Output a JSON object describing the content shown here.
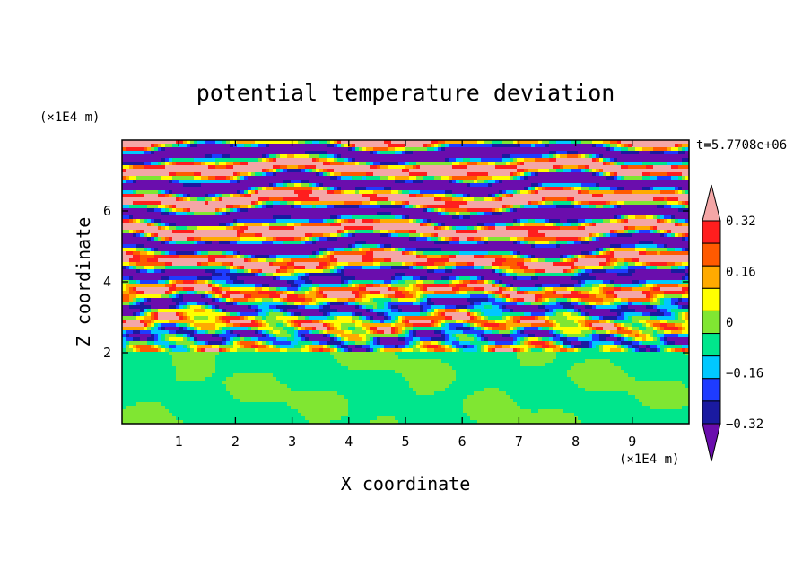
{
  "chart_data": {
    "type": "heatmap",
    "title": "potential temperature deviation",
    "xlabel": "X coordinate",
    "ylabel": "Z coordinate",
    "x_unit": "(×1E4 m)",
    "y_unit": "(×1E4 m)",
    "time_label": "t=5.7708e+06",
    "xlim": [
      0,
      10
    ],
    "ylim": [
      0,
      8
    ],
    "x_ticks": [
      "1",
      "2",
      "3",
      "4",
      "5",
      "6",
      "7",
      "8",
      "9"
    ],
    "y_ticks": [
      "2",
      "4",
      "6"
    ],
    "colorbar": {
      "tick_labels": [
        "0.32",
        "0.16",
        "0",
        "−0.16",
        "−0.32"
      ],
      "tick_values": [
        0.32,
        0.16,
        0,
        -0.16,
        -0.32
      ],
      "levels": [
        -0.4,
        -0.32,
        -0.24,
        -0.16,
        -0.08,
        0,
        0.08,
        0.16,
        0.24,
        0.32,
        0.4
      ],
      "colors": [
        "#6a0dad",
        "#1a1aa0",
        "#1e3cff",
        "#00c8ff",
        "#00e68c",
        "#80e632",
        "#ffff00",
        "#ffaa00",
        "#ff5a00",
        "#ff1e1e",
        "#f4a6a6"
      ],
      "extend": "both"
    },
    "field_description": {
      "lower_layer_top": 2,
      "lower_layer_values": [
        0,
        0.08
      ],
      "upper_layer_pattern": "horizontal alternating bands of -0.4 and +0.4 with turbulent transitions"
    }
  }
}
